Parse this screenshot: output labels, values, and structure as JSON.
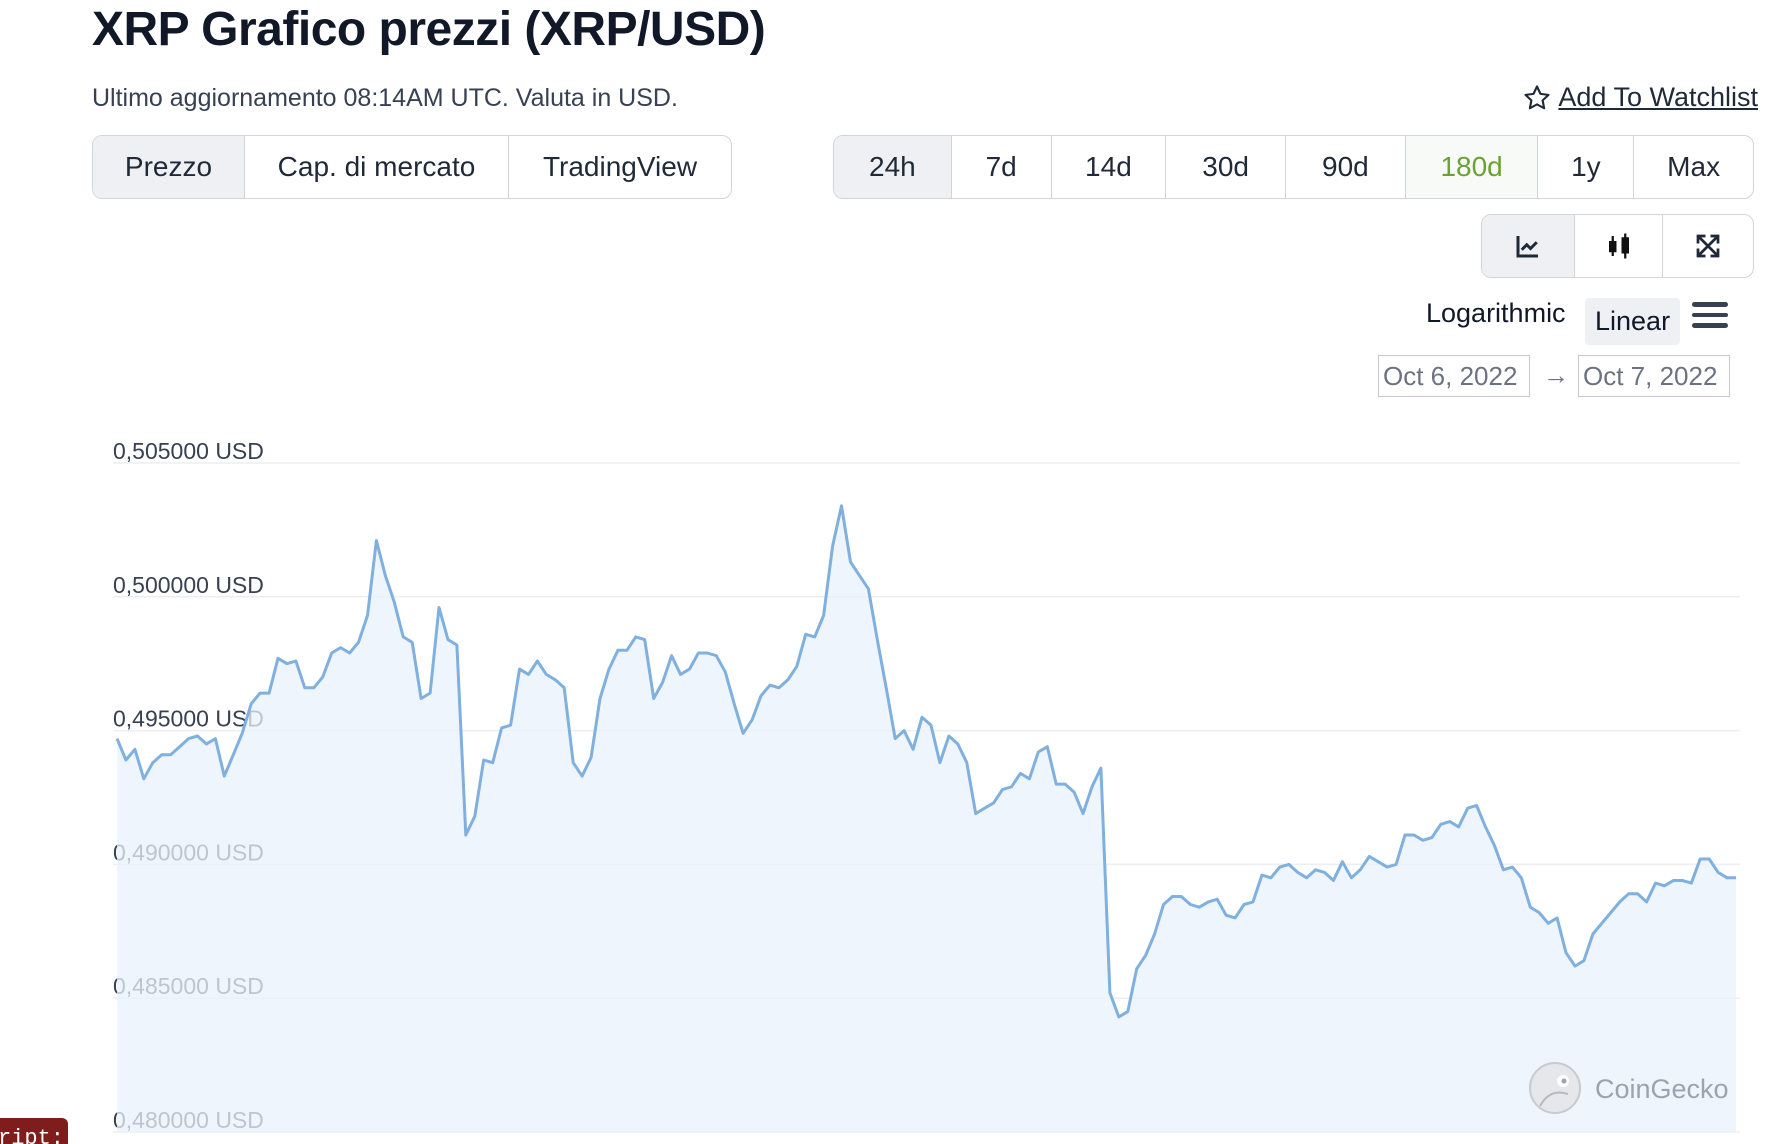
{
  "header": {
    "title": "XRP Grafico prezzi (XRP/USD)",
    "subtitle": "Ultimo aggiornamento 08:14AM UTC. Valuta in USD.",
    "watchlist_label": "Add To Watchlist"
  },
  "chart_type_tabs": [
    {
      "label": "Prezzo",
      "active": true
    },
    {
      "label": "Cap. di mercato",
      "active": false
    },
    {
      "label": "TradingView",
      "active": false
    }
  ],
  "range_tabs": [
    {
      "label": "24h",
      "active": true
    },
    {
      "label": "7d"
    },
    {
      "label": "14d"
    },
    {
      "label": "30d"
    },
    {
      "label": "90d"
    },
    {
      "label": "180d",
      "highlight": true
    },
    {
      "label": "1y"
    },
    {
      "label": "Max"
    }
  ],
  "view_modes": [
    "line-chart-icon",
    "candlestick-icon",
    "fullscreen-icon"
  ],
  "scale": {
    "log_label": "Logarithmic",
    "linear_label": "Linear",
    "selected": "Linear"
  },
  "date_range": {
    "from": "Oct 6, 2022",
    "to": "Oct 7, 2022"
  },
  "watermark": "CoinGecko",
  "badge_text": "ript::",
  "colors": {
    "line": "#7fb0df",
    "fill": "#eaf2fb",
    "grid": "#eceef1",
    "accent_green": "#6aa331"
  },
  "chart_data": {
    "type": "area",
    "series": [
      {
        "values": [
          0.4947,
          0.4939,
          0.4943,
          0.4932,
          0.4938,
          0.4941,
          0.4941,
          0.4944,
          0.4947,
          0.4948,
          0.4945,
          0.4947,
          0.4933,
          0.4941,
          0.4949,
          0.496,
          0.4964,
          0.4964,
          0.4977,
          0.4975,
          0.4976,
          0.4966,
          0.4966,
          0.497,
          0.4979,
          0.4981,
          0.4979,
          0.4983,
          0.4993,
          0.5021,
          0.5008,
          0.4998,
          0.4985,
          0.4983,
          0.4962,
          0.4964,
          0.4996,
          0.4984,
          0.4982,
          0.4911,
          0.4918,
          0.4939,
          0.4938,
          0.4951,
          0.4952,
          0.4973,
          0.4971,
          0.4976,
          0.4971,
          0.4969,
          0.4966,
          0.4938,
          0.4933,
          0.494,
          0.4962,
          0.4973,
          0.498,
          0.498,
          0.4985,
          0.4984,
          0.4962,
          0.4968,
          0.4978,
          0.4971,
          0.4973,
          0.4979,
          0.4979,
          0.4978,
          0.4972,
          0.496,
          0.4949,
          0.4954,
          0.4963,
          0.4967,
          0.4966,
          0.4969,
          0.4974,
          0.4986,
          0.4985,
          0.4993,
          0.5019,
          0.5034,
          0.5013,
          0.5008,
          0.5003,
          0.4984,
          0.4966,
          0.4947,
          0.495,
          0.4943,
          0.4955,
          0.4952,
          0.4938,
          0.4948,
          0.4945,
          0.4938,
          0.4919,
          0.4921,
          0.4923,
          0.4928,
          0.4929,
          0.4934,
          0.4932,
          0.4942,
          0.4944,
          0.493,
          0.493,
          0.4927,
          0.4919,
          0.4929,
          0.4936,
          0.4852,
          0.4843,
          0.4845,
          0.4861,
          0.4866,
          0.4874,
          0.4885,
          0.4888,
          0.4888,
          0.4885,
          0.4884,
          0.4886,
          0.4887,
          0.4881,
          0.488,
          0.4885,
          0.4886,
          0.4896,
          0.4895,
          0.4899,
          0.49,
          0.4897,
          0.4895,
          0.4898,
          0.4897,
          0.4894,
          0.4901,
          0.4895,
          0.4898,
          0.4903,
          0.4901,
          0.4899,
          0.49,
          0.4911,
          0.4911,
          0.4909,
          0.491,
          0.4915,
          0.4916,
          0.4914,
          0.4921,
          0.4922,
          0.4914,
          0.4907,
          0.4898,
          0.4899,
          0.4895,
          0.4884,
          0.4882,
          0.4878,
          0.488,
          0.4867,
          0.4862,
          0.4864,
          0.4874,
          0.4878,
          0.4882,
          0.4886,
          0.4889,
          0.4889,
          0.4886,
          0.4893,
          0.4892,
          0.4894,
          0.4894,
          0.4893,
          0.4902,
          0.4902,
          0.4897,
          0.4895,
          0.4895
        ]
      }
    ],
    "yticks": [
      "0,505000 USD",
      "0,500000 USD",
      "0,495000 USD",
      "0,490000 USD",
      "0,485000 USD",
      "0,480000 USD"
    ],
    "ylim": [
      0.48,
      0.505
    ],
    "grid": true,
    "xlabel": "",
    "ylabel": "",
    "title": ""
  }
}
